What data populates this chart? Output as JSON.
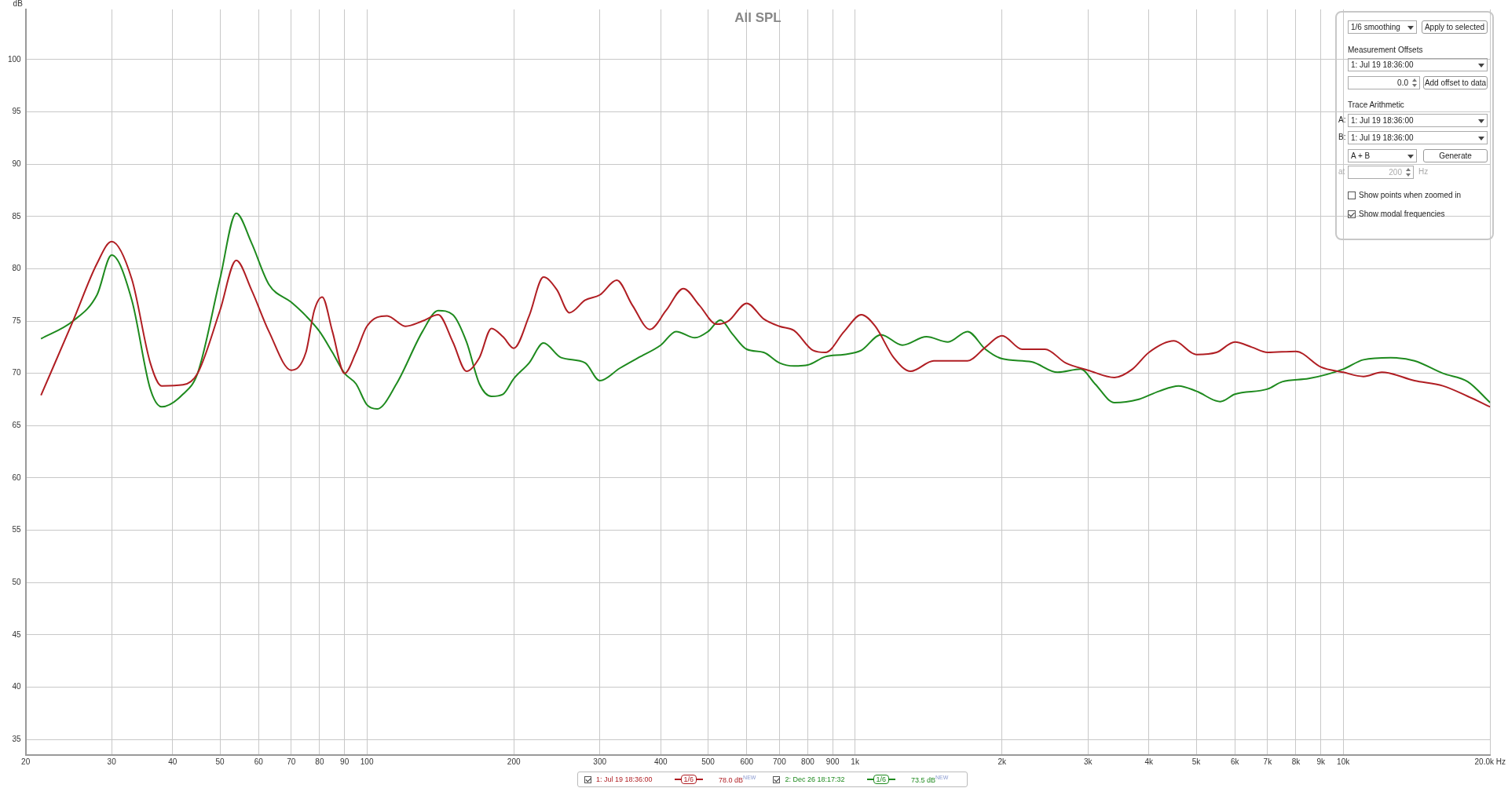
{
  "chart_data": {
    "type": "line",
    "title": "All SPL",
    "ylabel": "dB",
    "xlim": [
      20,
      20000
    ],
    "ylim": [
      33.5,
      104.8
    ],
    "log": "x",
    "grid": true,
    "legend": "bottom",
    "marker": "none",
    "line_style": "solid",
    "xticks": [
      20,
      30,
      40,
      50,
      60,
      70,
      80,
      90,
      100,
      200,
      300,
      400,
      500,
      600,
      700,
      800,
      900,
      {
        "value": 1000,
        "label": "1k"
      },
      {
        "value": 2000,
        "label": "2k"
      },
      {
        "value": 3000,
        "label": "3k"
      },
      {
        "value": 4000,
        "label": "4k"
      },
      {
        "value": 5000,
        "label": "5k"
      },
      {
        "value": 6000,
        "label": "6k"
      },
      {
        "value": 7000,
        "label": "7k"
      },
      {
        "value": 8000,
        "label": "8k"
      },
      {
        "value": 9000,
        "label": "9k"
      },
      {
        "value": 10000,
        "label": "10k"
      },
      {
        "value": 20000,
        "label": "20.0k Hz"
      }
    ],
    "yticks": [
      35,
      40,
      45,
      50,
      55,
      60,
      65,
      70,
      75,
      80,
      85,
      90,
      95,
      100
    ],
    "series": [
      {
        "name": "1: Jul 19 18:36:00",
        "color": "#b01e23",
        "x": [
          21.5,
          25,
          28,
          30,
          33,
          36,
          38,
          42,
          45,
          50,
          54,
          58,
          63,
          70,
          75,
          78,
          81,
          85,
          90,
          95,
          100,
          110,
          120,
          130,
          140,
          150,
          160,
          170,
          180,
          190,
          200,
          215,
          230,
          245,
          260,
          280,
          300,
          325,
          350,
          380,
          410,
          445,
          480,
          520,
          550,
          600,
          650,
          700,
          750,
          820,
          870,
          950,
          1030,
          1100,
          1200,
          1300,
          1450,
          1600,
          1700,
          1850,
          2000,
          2200,
          2450,
          2700,
          3000,
          3400,
          3700,
          4000,
          4500,
          5000,
          5500,
          6000,
          6500,
          7000,
          8000,
          9000,
          10000,
          11000,
          12000,
          14000,
          16000,
          18000,
          20000
        ],
        "values": [
          67.9,
          75,
          80.5,
          82.6,
          79,
          71,
          68.8,
          68.9,
          70,
          76,
          80.8,
          78,
          74,
          70.3,
          72,
          76,
          77.3,
          74,
          70,
          72,
          74.5,
          75.5,
          74.5,
          75,
          75.6,
          73,
          70.2,
          71.5,
          74.3,
          73.5,
          72.4,
          75.5,
          79.2,
          78,
          75.8,
          77,
          77.5,
          78.9,
          76.5,
          74.2,
          76,
          78.1,
          76.5,
          74.7,
          75,
          76.7,
          75.2,
          74.5,
          74.1,
          72.2,
          72,
          74,
          75.6,
          74.5,
          71.5,
          70.2,
          71.2,
          71.2,
          71.2,
          72.5,
          73.6,
          72.3,
          72.3,
          71,
          70.3,
          69.6,
          70.4,
          72,
          73.1,
          71.8,
          72,
          73,
          72.5,
          72,
          72.1,
          70.6,
          70.1,
          69.7,
          70.1,
          69.3,
          68.8,
          67.8,
          66.8
        ]
      },
      {
        "name": "2: Dec 26 18:17:32",
        "color": "#1e8a1e",
        "x": [
          21.5,
          25,
          28,
          30,
          33,
          36,
          38,
          42,
          45,
          50,
          54,
          58,
          63,
          70,
          75,
          80,
          85,
          90,
          95,
          100,
          105,
          115,
          130,
          140,
          150,
          160,
          170,
          180,
          190,
          200,
          215,
          230,
          250,
          280,
          300,
          330,
          360,
          400,
          430,
          470,
          500,
          530,
          560,
          600,
          650,
          700,
          750,
          800,
          870,
          950,
          1030,
          1130,
          1250,
          1400,
          1550,
          1700,
          1850,
          2000,
          2300,
          2600,
          2900,
          3100,
          3400,
          3800,
          4200,
          4600,
          5000,
          5600,
          6000,
          7000,
          7500,
          8500,
          10000,
          11000,
          12500,
          14000,
          16000,
          18000,
          20000
        ],
        "values": [
          73.3,
          75,
          77.5,
          81.3,
          77,
          68.5,
          66.8,
          68,
          70,
          79,
          85.3,
          82.5,
          78.5,
          76.8,
          75.5,
          74,
          72,
          70,
          69,
          67,
          66.6,
          69,
          74,
          76,
          75.6,
          73,
          69,
          67.8,
          68,
          69.5,
          71,
          72.9,
          71.5,
          71,
          69.3,
          70.5,
          71.5,
          72.7,
          74,
          73.4,
          74,
          75.1,
          73.8,
          72.3,
          72,
          71,
          70.7,
          70.8,
          71.6,
          71.8,
          72.2,
          73.7,
          72.7,
          73.5,
          73,
          74,
          72.3,
          71.4,
          71.1,
          70.1,
          70.4,
          69,
          67.2,
          67.5,
          68.3,
          68.8,
          68.3,
          67.3,
          68,
          68.5,
          69.2,
          69.5,
          70.4,
          71.3,
          71.5,
          71.2,
          70,
          69.2,
          67.2
        ]
      }
    ],
    "annotations": [
      "1/6 smoothing",
      "Apply to selected",
      "Measurement Offsets",
      "1: Jul 19 18:36:00",
      "0.0",
      "Add offset to data",
      "Trace Arithmetic",
      "A:",
      "1: Jul 19 18:36:00",
      "B:",
      "1: Jul 19 18:36:00",
      "A + B",
      "Generate",
      "at",
      "200",
      "Hz",
      "Show points when zoomed in",
      "Show modal frequencies",
      "1/6",
      "78.0 dB",
      "NEW",
      "1/6",
      "73.5 dB",
      "NEW"
    ]
  }
}
